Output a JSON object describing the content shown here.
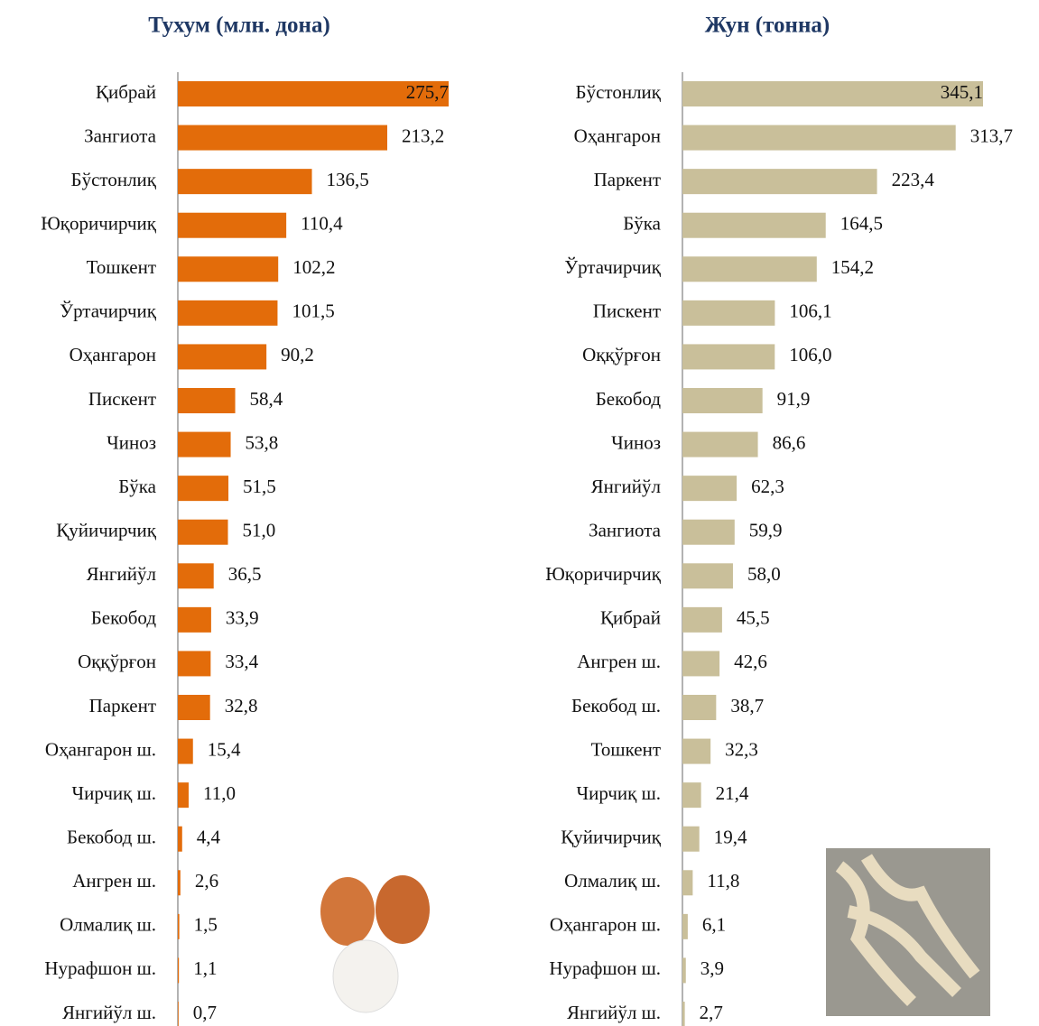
{
  "chart_data": [
    {
      "type": "bar",
      "orientation": "horizontal",
      "title": "Тухум (млн. дона)",
      "color": "#e36c0a",
      "categories": [
        "Қибрай",
        "Зангиота",
        "Бўстонлиқ",
        "Юқоричирчиқ",
        "Тошкент",
        "Ўртачирчиқ",
        "Оҳангарон",
        "Пискент",
        "Чиноз",
        "Бўка",
        "Қуйичирчиқ",
        "Янгийўл",
        "Бекобод",
        "Оққўрғон",
        "Паркент",
        "Оҳангарон ш.",
        "Чирчиқ ш.",
        "Бекобод ш.",
        "Ангрен ш.",
        "Олмалиқ ш.",
        "Нурафшон ш.",
        "Янгийўл ш."
      ],
      "values": [
        275.7,
        213.2,
        136.5,
        110.4,
        102.2,
        101.5,
        90.2,
        58.4,
        53.8,
        51.5,
        51.0,
        36.5,
        33.9,
        33.4,
        32.8,
        15.4,
        11.0,
        4.4,
        2.6,
        1.5,
        1.1,
        0.7
      ],
      "value_labels": [
        "275,7",
        "213,2",
        "136,5",
        "110,4",
        "102,2",
        "101,5",
        "90,2",
        "58,4",
        "53,8",
        "51,5",
        "51,0",
        "36,5",
        "33,9",
        "33,4",
        "32,8",
        "15,4",
        "11,0",
        "4,4",
        "2,6",
        "1,5",
        "1,1",
        "0,7"
      ]
    },
    {
      "type": "bar",
      "orientation": "horizontal",
      "title": "Жун (тонна)",
      "color": "#c9bf9a",
      "categories": [
        "Бўстонлиқ",
        "Оҳангарон",
        "Паркент",
        "Бўка",
        "Ўртачирчиқ",
        "Пискент",
        "Оққўрғон",
        "Бекобод",
        "Чиноз",
        "Янгийўл",
        "Зангиота",
        "Юқоричирчиқ",
        "Қибрай",
        "Ангрен ш.",
        "Бекобод ш.",
        "Тошкент",
        "Чирчиқ ш.",
        "Қуйичирчиқ",
        "Олмалиқ ш.",
        "Оҳангарон ш.",
        "Нурафшон ш.",
        "Янгийўл ш."
      ],
      "values": [
        345.1,
        313.7,
        223.4,
        164.5,
        154.2,
        106.1,
        106.0,
        91.9,
        86.6,
        62.3,
        59.9,
        58.0,
        45.5,
        42.6,
        38.7,
        32.3,
        21.4,
        19.4,
        11.8,
        6.1,
        3.9,
        2.7
      ],
      "value_labels": [
        "345,1",
        "313,7",
        "223,4",
        "164,5",
        "154,2",
        "106,1",
        "106,0",
        "91,9",
        "86,6",
        "62,3",
        "59,9",
        "58,0",
        "45,5",
        "42,6",
        "38,7",
        "32,3",
        "21,4",
        "19,4",
        "11,8",
        "6,1",
        "3,9",
        "2,7"
      ]
    }
  ]
}
